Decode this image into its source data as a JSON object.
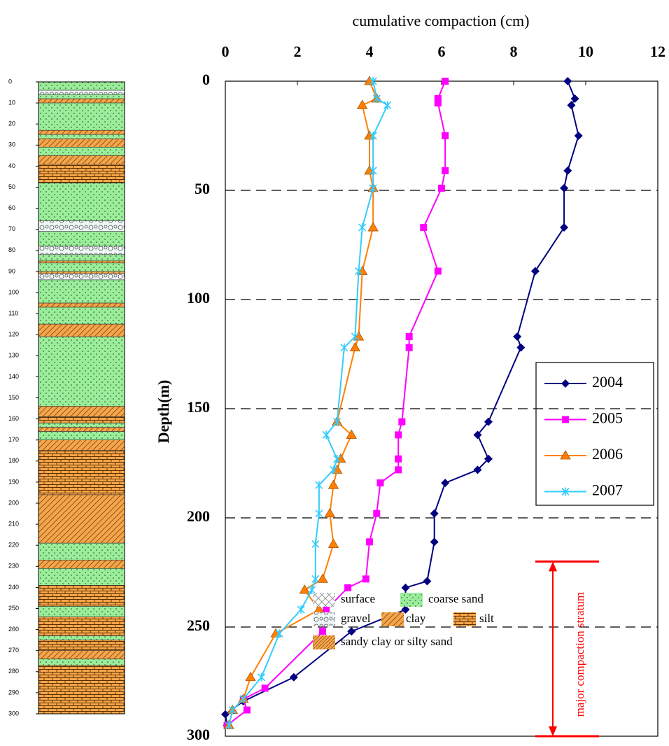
{
  "chart_data": {
    "type": "line",
    "title": "cumulative compaction (cm)",
    "y_label": "Depth(m)",
    "xlim": [
      0,
      12
    ],
    "xticks": [
      0,
      2,
      4,
      6,
      8,
      10,
      12
    ],
    "ylim": [
      0,
      300
    ],
    "yticks": [
      0,
      50,
      100,
      150,
      200,
      250,
      300
    ],
    "grid": true,
    "series": [
      {
        "name": "2004",
        "color": "#000080",
        "marker": "diamond",
        "depth": [
          0,
          8,
          11,
          25,
          41,
          49,
          67,
          87,
          117,
          122,
          156,
          162,
          173,
          178,
          184,
          198,
          211,
          229,
          232,
          242,
          252,
          273,
          284,
          290,
          295
        ],
        "values": [
          9.5,
          9.7,
          9.6,
          9.8,
          9.5,
          9.4,
          9.4,
          8.6,
          8.1,
          8.2,
          7.3,
          7.0,
          7.3,
          7.0,
          6.1,
          5.8,
          5.8,
          5.6,
          5.0,
          5.0,
          3.5,
          1.9,
          0.5,
          0.0,
          0.05
        ]
      },
      {
        "name": "2005",
        "color": "#ff00ff",
        "marker": "square",
        "depth": [
          0,
          8,
          10,
          25,
          41,
          49,
          67,
          87,
          117,
          122,
          156,
          162,
          173,
          178,
          184,
          198,
          211,
          228,
          232,
          242,
          252,
          278,
          283,
          288,
          295
        ],
        "values": [
          6.1,
          5.9,
          5.9,
          6.1,
          6.1,
          6.0,
          5.5,
          5.9,
          5.1,
          5.1,
          4.9,
          4.8,
          4.8,
          4.8,
          4.3,
          4.2,
          4.0,
          3.9,
          3.4,
          2.8,
          2.7,
          1.1,
          0.5,
          0.6,
          0.05
        ]
      },
      {
        "name": "2006",
        "color": "#ff8000",
        "marker": "triangle",
        "depth": [
          0,
          8,
          11,
          25,
          41,
          49,
          67,
          87,
          117,
          122,
          156,
          162,
          173,
          178,
          185,
          198,
          212,
          228,
          233,
          242,
          253,
          273,
          283,
          288,
          295
        ],
        "values": [
          4.0,
          4.2,
          3.8,
          4.0,
          4.0,
          4.1,
          4.1,
          3.8,
          3.7,
          3.6,
          3.1,
          3.5,
          3.2,
          3.1,
          3.0,
          2.9,
          3.0,
          2.7,
          2.2,
          2.6,
          1.4,
          0.7,
          0.5,
          0.2,
          0.1
        ]
      },
      {
        "name": "2007",
        "color": "#33ccff",
        "marker": "cross",
        "depth": [
          0,
          8,
          11,
          25,
          41,
          49,
          67,
          87,
          117,
          122,
          156,
          162,
          173,
          178,
          185,
          198,
          212,
          228,
          233,
          242,
          253,
          273,
          283,
          288,
          295
        ],
        "values": [
          4.1,
          4.2,
          4.5,
          4.1,
          4.1,
          4.1,
          3.8,
          3.7,
          3.6,
          3.3,
          3.1,
          2.8,
          3.1,
          3.0,
          2.6,
          2.6,
          2.5,
          2.5,
          2.4,
          2.1,
          1.5,
          1.0,
          0.5,
          0.2,
          0.1
        ]
      }
    ],
    "annotation": {
      "text": "major compaction stratum",
      "from": 220,
      "to": 300,
      "color": "#ff0000"
    },
    "column_ylim": [
      0,
      300
    ],
    "column_yticks": [
      0,
      10,
      20,
      30,
      40,
      50,
      60,
      70,
      80,
      90,
      100,
      110,
      120,
      130,
      140,
      150,
      160,
      170,
      180,
      190,
      200,
      210,
      220,
      230,
      240,
      250,
      260,
      270,
      280,
      290,
      300
    ],
    "lithology_legend": [
      "surface",
      "coarse sand",
      "gravel",
      "clay",
      "silt",
      "sandy clay or silty sand"
    ],
    "strata": [
      {
        "top": 0,
        "bottom": 4,
        "pattern": 1
      },
      {
        "top": 4,
        "bottom": 6,
        "pattern": 2
      },
      {
        "top": 6,
        "bottom": 8,
        "pattern": 1
      },
      {
        "top": 8,
        "bottom": 10,
        "pattern": 3
      },
      {
        "top": 10,
        "bottom": 23,
        "pattern": 1
      },
      {
        "top": 23,
        "bottom": 25,
        "pattern": 3
      },
      {
        "top": 25,
        "bottom": 27,
        "pattern": 1
      },
      {
        "top": 27,
        "bottom": 31,
        "pattern": 3
      },
      {
        "top": 31,
        "bottom": 35,
        "pattern": 1
      },
      {
        "top": 35,
        "bottom": 39,
        "pattern": 3
      },
      {
        "top": 39,
        "bottom": 48,
        "pattern": 4
      },
      {
        "top": 48,
        "bottom": 66,
        "pattern": 1
      },
      {
        "top": 66,
        "bottom": 71,
        "pattern": 2
      },
      {
        "top": 71,
        "bottom": 78,
        "pattern": 1
      },
      {
        "top": 78,
        "bottom": 82,
        "pattern": 2
      },
      {
        "top": 82,
        "bottom": 85,
        "pattern": 1
      },
      {
        "top": 85,
        "bottom": 86,
        "pattern": 3
      },
      {
        "top": 86,
        "bottom": 90,
        "pattern": 1
      },
      {
        "top": 90,
        "bottom": 91,
        "pattern": 3
      },
      {
        "top": 91,
        "bottom": 94,
        "pattern": 2
      },
      {
        "top": 94,
        "bottom": 105,
        "pattern": 1
      },
      {
        "top": 105,
        "bottom": 107,
        "pattern": 3
      },
      {
        "top": 107,
        "bottom": 115,
        "pattern": 1
      },
      {
        "top": 115,
        "bottom": 121,
        "pattern": 3
      },
      {
        "top": 121,
        "bottom": 154,
        "pattern": 1
      },
      {
        "top": 154,
        "bottom": 159,
        "pattern": 3
      },
      {
        "top": 159,
        "bottom": 162,
        "pattern": 4
      },
      {
        "top": 162,
        "bottom": 164,
        "pattern": 1
      },
      {
        "top": 164,
        "bottom": 166,
        "pattern": 3
      },
      {
        "top": 166,
        "bottom": 170,
        "pattern": 1
      },
      {
        "top": 170,
        "bottom": 175,
        "pattern": 3
      },
      {
        "top": 175,
        "bottom": 196,
        "pattern": 4
      },
      {
        "top": 196,
        "bottom": 219,
        "pattern": 3
      },
      {
        "top": 219,
        "bottom": 227,
        "pattern": 1
      },
      {
        "top": 227,
        "bottom": 231,
        "pattern": 3
      },
      {
        "top": 231,
        "bottom": 239,
        "pattern": 1
      },
      {
        "top": 239,
        "bottom": 249,
        "pattern": 4
      },
      {
        "top": 249,
        "bottom": 254,
        "pattern": 1
      },
      {
        "top": 254,
        "bottom": 263,
        "pattern": 4
      },
      {
        "top": 263,
        "bottom": 265,
        "pattern": 1
      },
      {
        "top": 265,
        "bottom": 270,
        "pattern": 4
      },
      {
        "top": 270,
        "bottom": 274,
        "pattern": 3
      },
      {
        "top": 274,
        "bottom": 277,
        "pattern": 1
      },
      {
        "top": 277,
        "bottom": 300,
        "pattern": 4
      }
    ]
  }
}
